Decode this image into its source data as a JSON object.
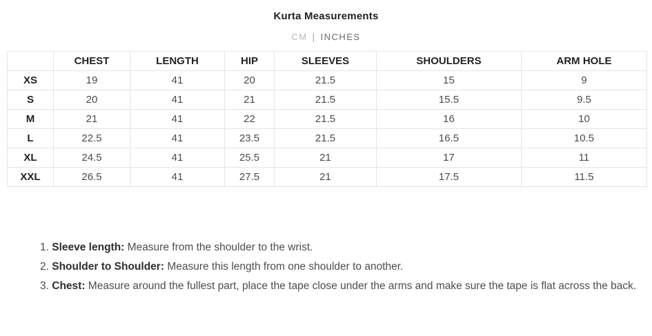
{
  "header": {
    "title": "Kurta Measurements",
    "unit_toggle": {
      "cm_label": "CM",
      "separator": "|",
      "inches_label": "INCHES",
      "selected": "INCHES"
    }
  },
  "table": {
    "columns": [
      "",
      "CHEST",
      "LENGTH",
      "HIP",
      "SLEEVES",
      "SHOULDERS",
      "ARM HOLE"
    ],
    "rows": [
      {
        "size": "XS",
        "values": [
          "19",
          "41",
          "20",
          "21.5",
          "15",
          "9"
        ]
      },
      {
        "size": "S",
        "values": [
          "20",
          "41",
          "21",
          "21.5",
          "15.5",
          "9.5"
        ]
      },
      {
        "size": "M",
        "values": [
          "21",
          "41",
          "22",
          "21.5",
          "16",
          "10"
        ]
      },
      {
        "size": "L",
        "values": [
          "22.5",
          "41",
          "23.5",
          "21.5",
          "16.5",
          "10.5"
        ]
      },
      {
        "size": "XL",
        "values": [
          "24.5",
          "41",
          "25.5",
          "21",
          "17",
          "11"
        ]
      },
      {
        "size": "XXL",
        "values": [
          "26.5",
          "41",
          "27.5",
          "21",
          "17.5",
          "11.5"
        ]
      }
    ]
  },
  "notes": [
    {
      "number": "1.",
      "label": "Sleeve length:",
      "text": "Measure from the shoulder to the wrist."
    },
    {
      "number": "2.",
      "label": "Shoulder to Shoulder:",
      "text": "Measure this length from one shoulder to another."
    },
    {
      "number": "3.",
      "label": "Chest:",
      "text": "Measure around the fullest part, place the tape close under the arms and make sure the tape is flat across the back."
    }
  ],
  "colors": {
    "heading_text": "#1f1f1f",
    "cell_text": "#4a4a4a",
    "muted_unit": "#b7b7b7",
    "active_unit": "#6a6a6a",
    "table_border": "#e4e4e4"
  }
}
